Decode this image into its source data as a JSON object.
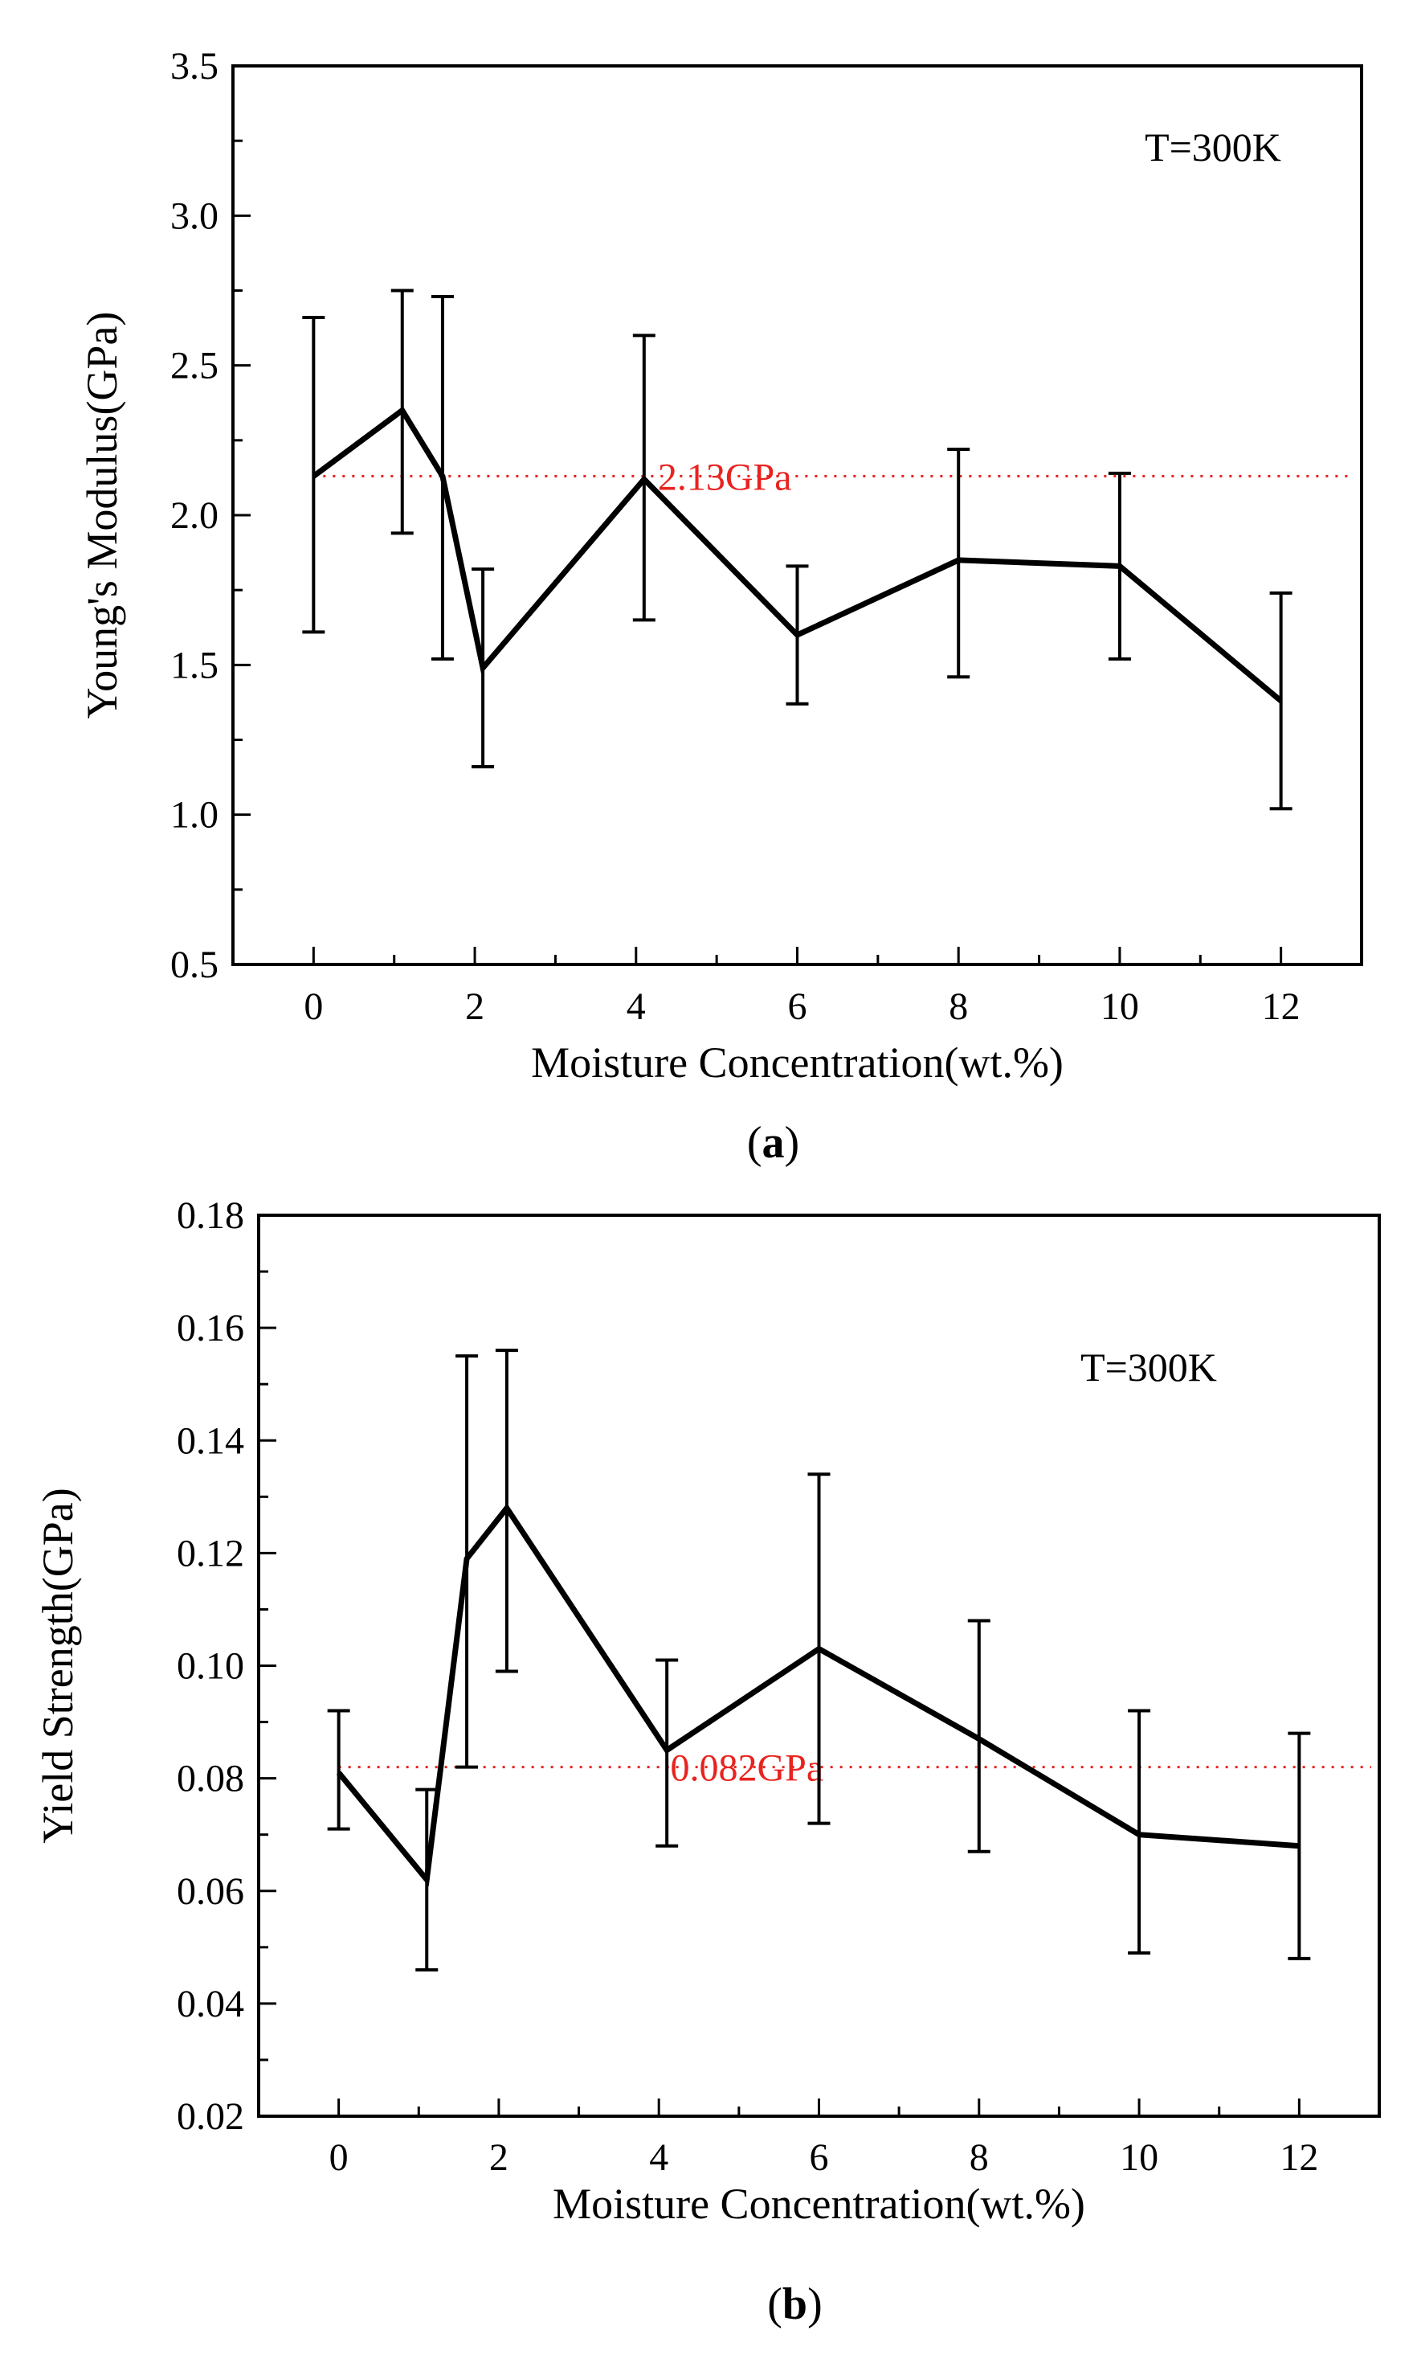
{
  "chart_data": [
    {
      "type": "line",
      "panel_label": "a",
      "xlabel": "Moisture Concentration(wt.%)",
      "ylabel": "Young's Modulus(GPa)",
      "annotation": "T=300K",
      "reference_line": {
        "value": 2.13,
        "label": "2.13GPa",
        "color": "#e8231f",
        "style": "dotted"
      },
      "xlim": [
        -1.0,
        13.0
      ],
      "ylim": [
        0.5,
        3.5
      ],
      "xticks": [
        0,
        2,
        4,
        6,
        8,
        10,
        12
      ],
      "xtick_labels": [
        "0",
        "2",
        "4",
        "6",
        "8",
        "10",
        "12"
      ],
      "yticks": [
        0.5,
        1.0,
        1.5,
        2.0,
        2.5,
        3.0,
        3.5
      ],
      "ytick_labels": [
        "0.5",
        "1.0",
        "1.5",
        "2.0",
        "2.5",
        "3.0",
        "3.5"
      ],
      "yminor": true,
      "xminor": true,
      "series": [
        {
          "name": "Young's Modulus",
          "color": "#000000",
          "x": [
            0,
            1.1,
            1.6,
            2.1,
            4.1,
            6,
            8,
            10,
            12
          ],
          "y": [
            2.13,
            2.35,
            2.13,
            1.49,
            2.12,
            1.6,
            1.85,
            1.83,
            1.38
          ],
          "err_low": [
            1.61,
            1.94,
            1.52,
            1.16,
            1.65,
            1.37,
            1.46,
            1.52,
            1.02
          ],
          "err_high": [
            2.66,
            2.75,
            2.73,
            1.82,
            2.6,
            1.83,
            2.22,
            2.14,
            1.74
          ]
        }
      ]
    },
    {
      "type": "line",
      "panel_label": "b",
      "xlabel": "Moisture Concentration(wt.%)",
      "ylabel": "Yield Strength(GPa)",
      "annotation": "T=300K",
      "reference_line": {
        "value": 0.082,
        "label": "0.082GPa",
        "color": "#e8231f",
        "style": "dotted"
      },
      "xlim": [
        -1.0,
        13.0
      ],
      "ylim": [
        0.02,
        0.18
      ],
      "xticks": [
        0,
        2,
        4,
        6,
        8,
        10,
        12
      ],
      "xtick_labels": [
        "0",
        "2",
        "4",
        "6",
        "8",
        "10",
        "12"
      ],
      "yticks": [
        0.02,
        0.04,
        0.06,
        0.08,
        0.1,
        0.12,
        0.14,
        0.16,
        0.18
      ],
      "ytick_labels": [
        "0.02",
        "0.04",
        "0.06",
        "0.08",
        "0.10",
        "0.12",
        "0.14",
        "0.16",
        "0.18"
      ],
      "yminor": true,
      "xminor": true,
      "series": [
        {
          "name": "Yield Strength",
          "color": "#000000",
          "x": [
            0,
            1.1,
            1.6,
            2.1,
            4.1,
            6,
            8,
            10,
            12
          ],
          "y": [
            0.081,
            0.062,
            0.119,
            0.128,
            0.085,
            0.103,
            0.087,
            0.07,
            0.068
          ],
          "err_low": [
            0.071,
            0.046,
            0.082,
            0.099,
            0.068,
            0.072,
            0.067,
            0.049,
            0.048
          ],
          "err_high": [
            0.092,
            0.078,
            0.155,
            0.156,
            0.101,
            0.134,
            0.108,
            0.092,
            0.088
          ]
        }
      ]
    }
  ]
}
